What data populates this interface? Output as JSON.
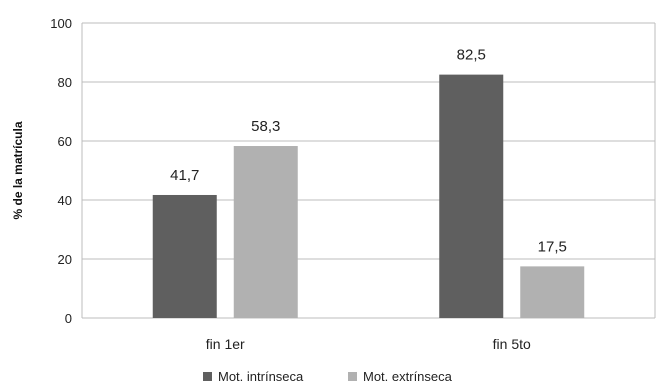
{
  "chart_data": {
    "type": "bar",
    "categories": [
      "fin 1er",
      "fin 5to"
    ],
    "series": [
      {
        "name": "Mot. intrínseca",
        "values": [
          41.7,
          82.5
        ],
        "labels": [
          "41,7",
          "82,5"
        ],
        "color": "#5f5f5f"
      },
      {
        "name": "Mot. extrínseca",
        "values": [
          58.3,
          17.5
        ],
        "labels": [
          "58,3",
          "17,5"
        ],
        "color": "#b1b1b1"
      }
    ],
    "title": "",
    "xlabel": "",
    "ylabel": "% de la matrícula",
    "ylim": [
      0,
      100
    ],
    "yticks": [
      0,
      20,
      40,
      60,
      80,
      100
    ],
    "grid": true,
    "legend": "bottom"
  }
}
